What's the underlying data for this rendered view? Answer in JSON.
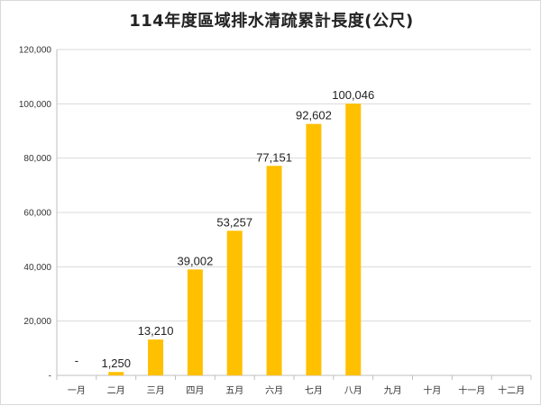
{
  "chart_data": {
    "type": "bar",
    "title": "114年度區域排水清疏累計長度(公尺)",
    "xlabel": "",
    "ylabel": "",
    "categories": [
      "一月",
      "二月",
      "三月",
      "四月",
      "五月",
      "六月",
      "七月",
      "八月",
      "九月",
      "十月",
      "十一月",
      "十二月"
    ],
    "values": [
      0,
      1250,
      13210,
      39002,
      53257,
      77151,
      92602,
      100046,
      null,
      null,
      null,
      null
    ],
    "data_labels": [
      "-",
      "1,250",
      "13,210",
      "39,002",
      "53,257",
      "77,151",
      "92,602",
      "100,046",
      "",
      "",
      "",
      ""
    ],
    "y_tick_values": [
      0,
      20000,
      40000,
      60000,
      80000,
      100000,
      120000
    ],
    "y_tick_labels": [
      "-",
      "20,000",
      "40,000",
      "60,000",
      "80,000",
      "100,000",
      "120,000"
    ],
    "ylim": [
      0,
      120000
    ],
    "grid": true,
    "legend": "none",
    "bar_color": "#FFC000",
    "grid_color": "#D9D9D9"
  }
}
